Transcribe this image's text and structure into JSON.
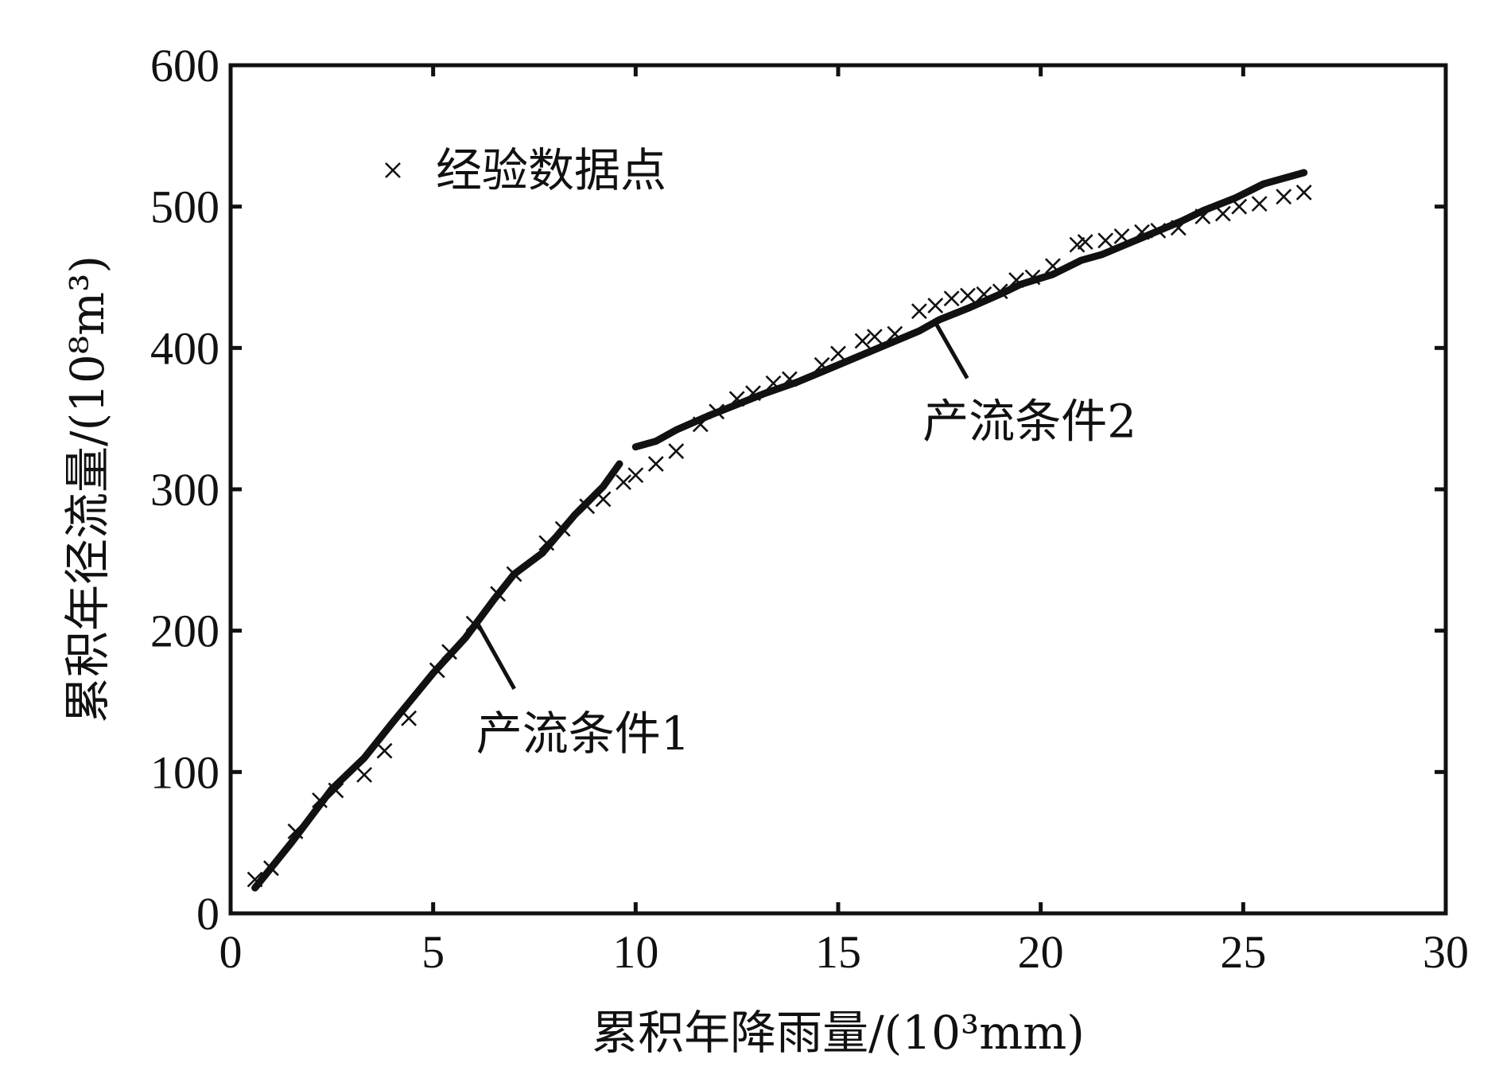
{
  "chart_data": {
    "type": "scatter",
    "xlabel": "累积年降雨量/(10³mm)",
    "ylabel": "累积年径流量/(10⁸m³)",
    "xlim": [
      0,
      30
    ],
    "ylim": [
      0,
      600
    ],
    "xticks": [
      0,
      5,
      10,
      15,
      20,
      25,
      30
    ],
    "yticks": [
      0,
      100,
      200,
      300,
      400,
      500,
      600
    ],
    "grid": false,
    "legend": {
      "position": "top-left",
      "entries": [
        {
          "name": "经验数据点",
          "marker": "x"
        }
      ]
    },
    "series": [
      {
        "name": "经验数据点",
        "type": "scatter",
        "marker": "x",
        "x": [
          0.6,
          1.0,
          1.6,
          2.2,
          2.6,
          3.3,
          3.8,
          4.4,
          5.1,
          5.4,
          6.0,
          6.6,
          7.0,
          7.8,
          8.2,
          8.8,
          9.2,
          9.7,
          10.0,
          10.5,
          11.0,
          11.6,
          12.0,
          12.5,
          12.9,
          13.4,
          13.8,
          14.6,
          15.0,
          15.6,
          15.9,
          16.4,
          17.0,
          17.4,
          17.8,
          18.2,
          18.6,
          19.0,
          19.4,
          19.8,
          20.3,
          20.9,
          21.1,
          21.6,
          22.0,
          22.5,
          22.9,
          23.4,
          24.0,
          24.5,
          24.9,
          25.4,
          26.0,
          26.5
        ],
        "y": [
          24,
          32,
          58,
          80,
          87,
          98,
          115,
          138,
          172,
          185,
          205,
          226,
          240,
          262,
          272,
          288,
          293,
          305,
          310,
          318,
          327,
          346,
          355,
          364,
          368,
          375,
          378,
          388,
          396,
          405,
          408,
          410,
          426,
          430,
          435,
          437,
          438,
          440,
          448,
          450,
          458,
          473,
          475,
          476,
          479,
          482,
          483,
          485,
          493,
          495,
          500,
          502,
          507,
          510
        ]
      },
      {
        "name": "产流条件1",
        "type": "line",
        "x": [
          0.6,
          1.5,
          2.5,
          3.3,
          4.0,
          5.0,
          5.8,
          6.5,
          7.0,
          7.7,
          8.5,
          9.2,
          9.6
        ],
        "y": [
          18,
          50,
          88,
          110,
          135,
          170,
          195,
          222,
          240,
          255,
          282,
          302,
          318
        ]
      },
      {
        "name": "产流条件2",
        "type": "line",
        "x": [
          10.0,
          10.5,
          11.0,
          11.8,
          12.5,
          13.2,
          14.0,
          15.0,
          16.0,
          17.0,
          17.5,
          18.2,
          19.0,
          19.5,
          20.3,
          21.0,
          21.5,
          22.5,
          23.5,
          24.0,
          24.8,
          25.5,
          26.0,
          26.5
        ],
        "y": [
          330,
          334,
          342,
          352,
          360,
          368,
          376,
          388,
          400,
          412,
          420,
          428,
          438,
          445,
          452,
          462,
          466,
          478,
          490,
          497,
          506,
          516,
          520,
          524
        ]
      }
    ],
    "annotations": [
      {
        "text": "产流条件1",
        "target_x": 6.1,
        "target_y": 205
      },
      {
        "text": "产流条件2",
        "target_x": 17.4,
        "target_y": 418
      }
    ]
  }
}
